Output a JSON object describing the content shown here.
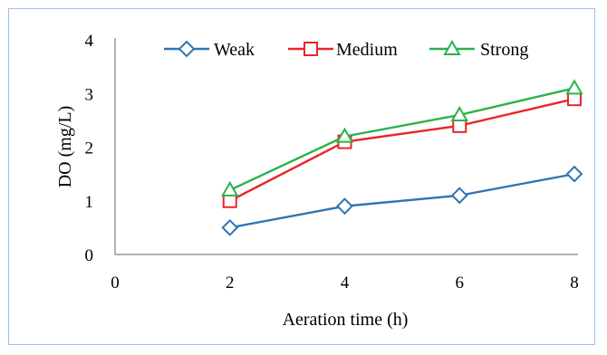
{
  "chart_data": {
    "type": "line",
    "title": "",
    "xlabel": "Aeration time (h)",
    "ylabel": "DO (mg/L)",
    "xlim": [
      0,
      8
    ],
    "ylim": [
      0,
      4
    ],
    "xticks": [
      0,
      2,
      4,
      6,
      8
    ],
    "yticks": [
      0,
      1,
      2,
      3,
      4
    ],
    "grid": false,
    "legend_position": "top",
    "x": [
      2,
      4,
      6,
      8
    ],
    "series": [
      {
        "name": "Weak",
        "values": [
          0.5,
          0.9,
          1.1,
          1.5
        ],
        "color": "#2e75b6",
        "marker": "diamond"
      },
      {
        "name": "Medium",
        "values": [
          1.0,
          2.1,
          2.4,
          2.9
        ],
        "color": "#e8262b",
        "marker": "square"
      },
      {
        "name": "Strong",
        "values": [
          1.2,
          2.2,
          2.6,
          3.1
        ],
        "color": "#2bb24c",
        "marker": "triangle"
      }
    ]
  }
}
